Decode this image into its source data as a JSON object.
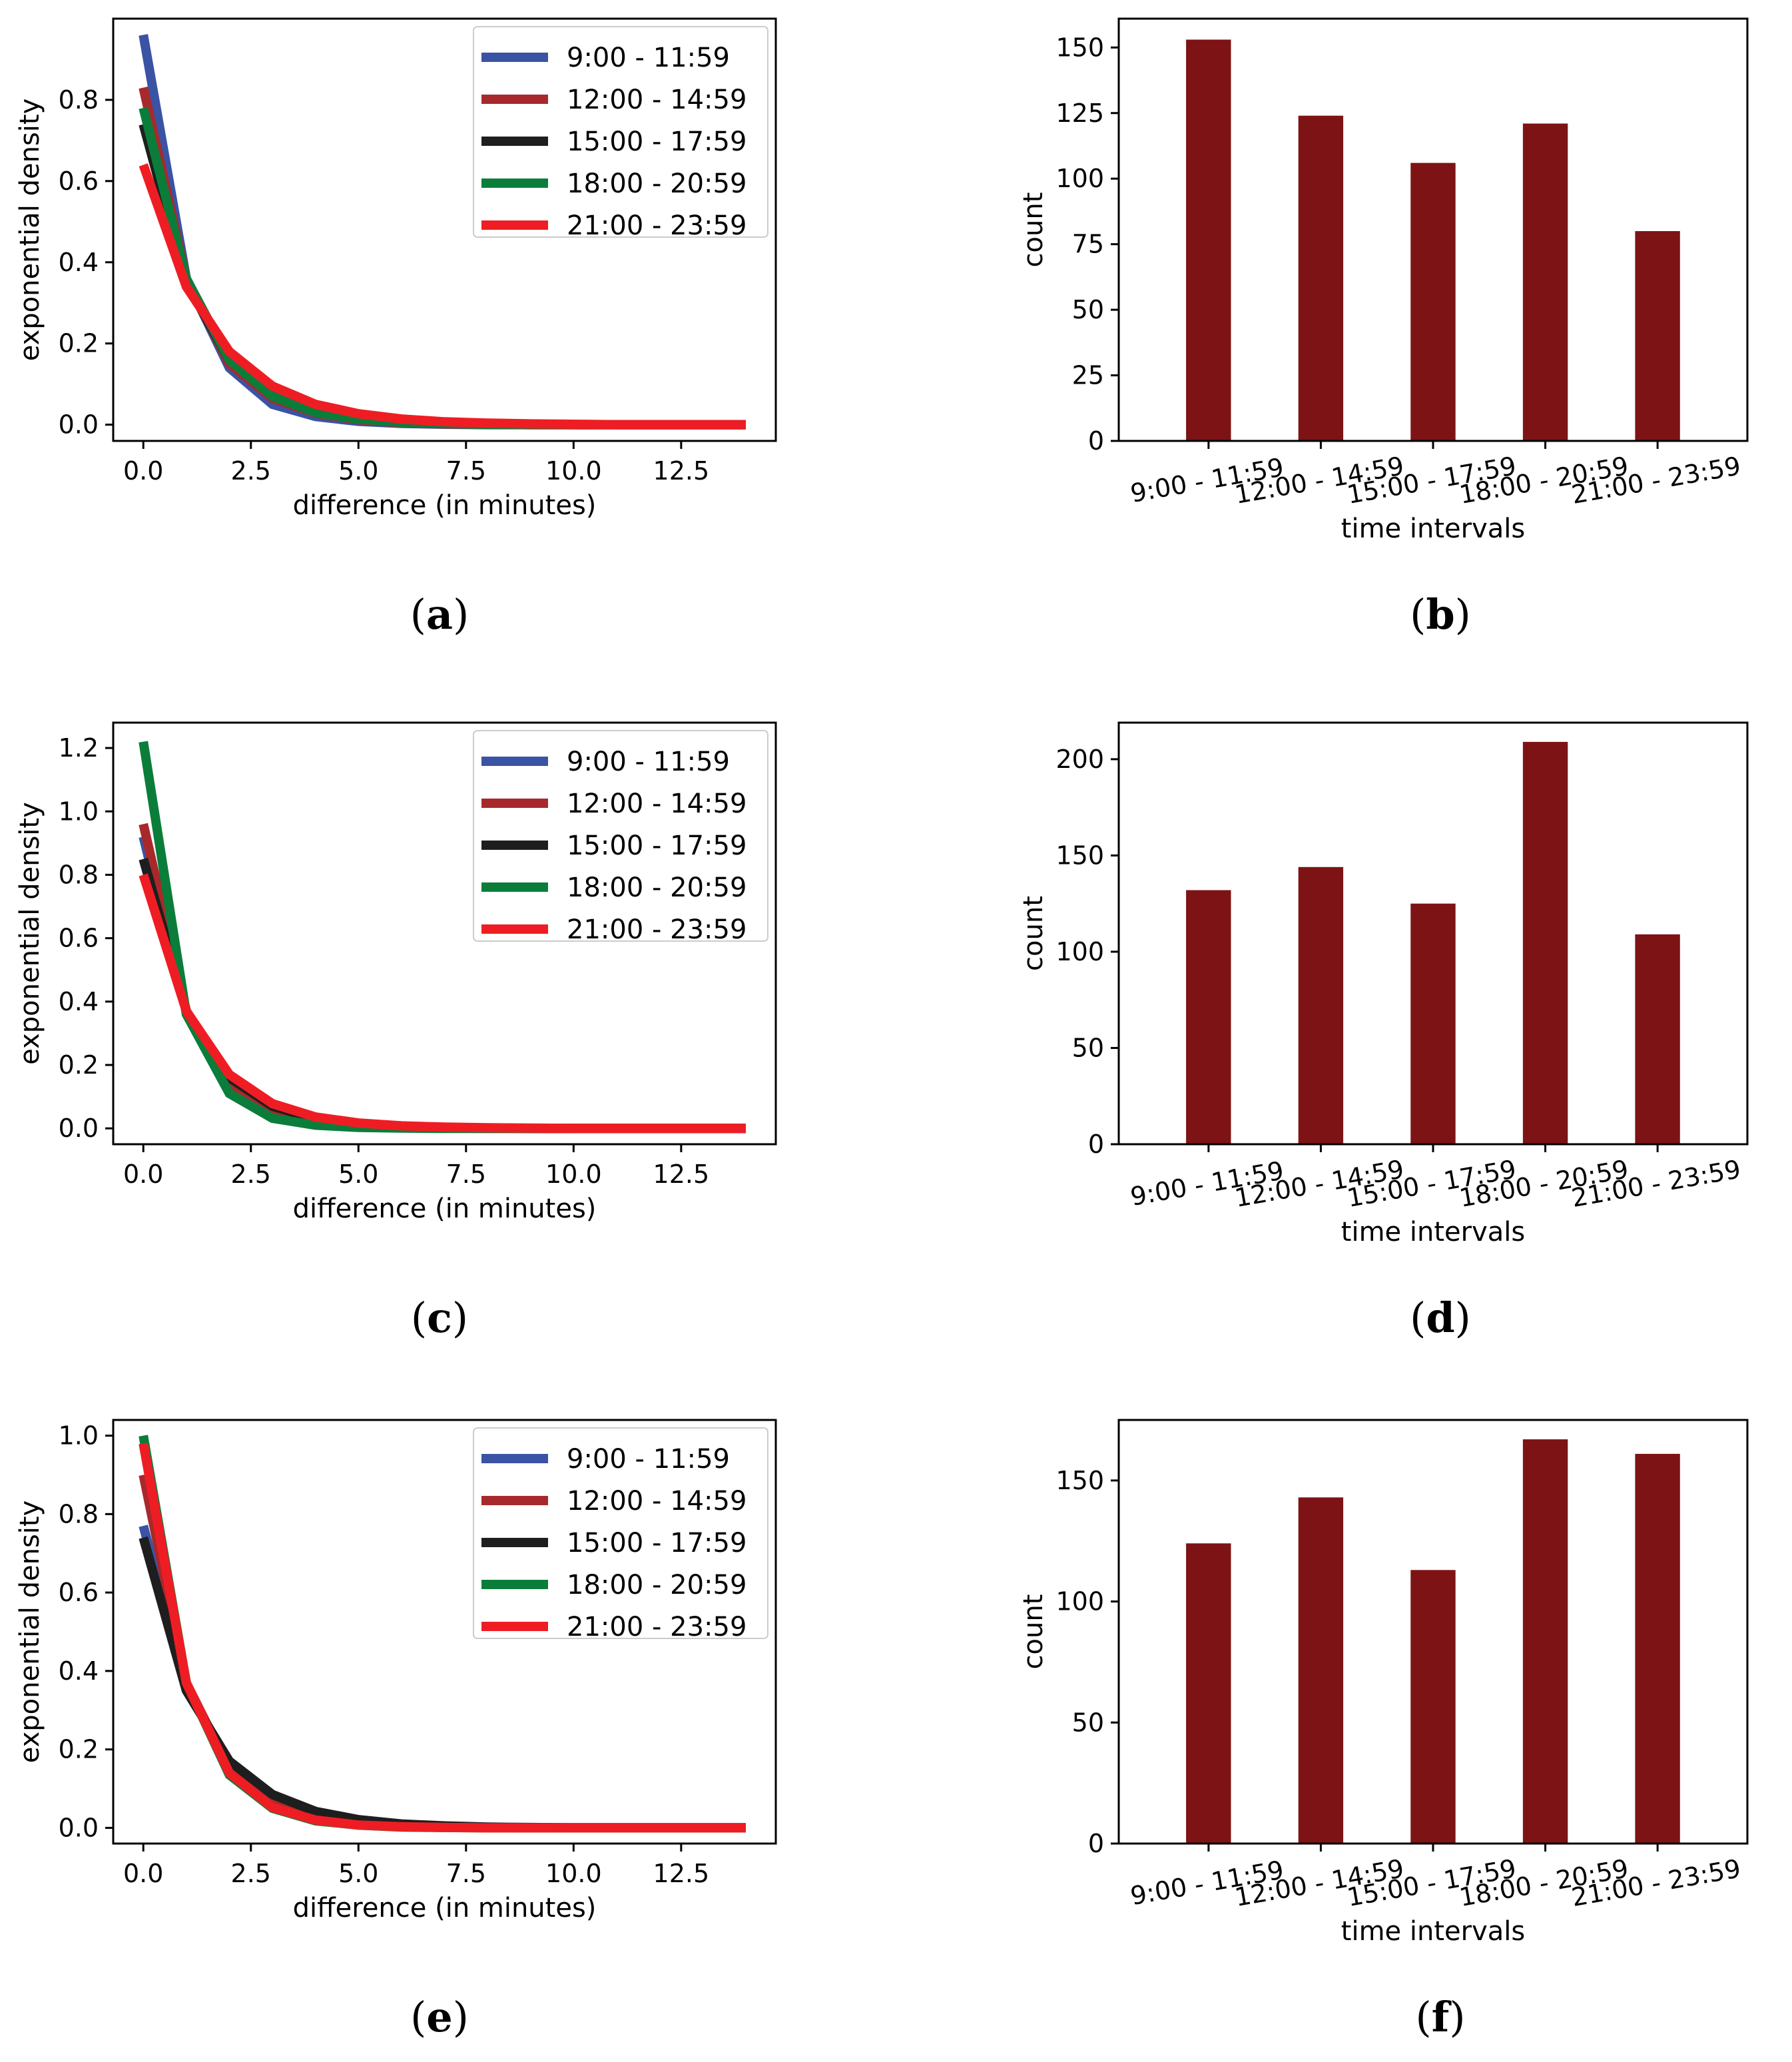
{
  "colors": {
    "series": [
      "#3a53a4",
      "#a8292b",
      "#1e1e1e",
      "#0b7d3a",
      "#ee1d24"
    ],
    "bar": "#7d1315",
    "axis": "#000000"
  },
  "chart_data": [
    {
      "id": "a",
      "type": "line",
      "caption": "a",
      "xlabel": "difference (in minutes)",
      "ylabel": "exponential density",
      "xlim": [
        -0.7,
        14.7
      ],
      "ylim": [
        -0.04,
        1.0
      ],
      "xticks": [
        0.0,
        2.5,
        5.0,
        7.5,
        10.0,
        12.5
      ],
      "xtick_labels": [
        "0.0",
        "2.5",
        "5.0",
        "7.5",
        "10.0",
        "12.5"
      ],
      "yticks": [
        0.0,
        0.2,
        0.4,
        0.6,
        0.8
      ],
      "ytick_labels": [
        "0.0",
        "0.2",
        "0.4",
        "0.6",
        "0.8"
      ],
      "legend_position": "top-right",
      "x": [
        0,
        1,
        2,
        3,
        4,
        5,
        6,
        7,
        8,
        9,
        10,
        11,
        12,
        13,
        14
      ],
      "series": [
        {
          "name": "9:00 - 11:59",
          "values": [
            0.96,
            0.36,
            0.14,
            0.05,
            0.02,
            0.008,
            0.003,
            0.001,
            0.0,
            0.0,
            0.0,
            0.0,
            0.0,
            0.0,
            0.0
          ]
        },
        {
          "name": "12:00 - 14:59",
          "values": [
            0.83,
            0.36,
            0.15,
            0.065,
            0.028,
            0.012,
            0.005,
            0.002,
            0.001,
            0.0,
            0.0,
            0.0,
            0.0,
            0.0,
            0.0
          ]
        },
        {
          "name": "15:00 - 17:59",
          "values": [
            0.74,
            0.35,
            0.16,
            0.075,
            0.035,
            0.016,
            0.008,
            0.004,
            0.002,
            0.001,
            0.0,
            0.0,
            0.0,
            0.0,
            0.0
          ]
        },
        {
          "name": "18:00 - 20:59",
          "values": [
            0.78,
            0.36,
            0.16,
            0.07,
            0.03,
            0.014,
            0.006,
            0.003,
            0.001,
            0.0,
            0.0,
            0.0,
            0.0,
            0.0,
            0.0
          ]
        },
        {
          "name": "21:00 - 23:59",
          "values": [
            0.64,
            0.34,
            0.18,
            0.095,
            0.05,
            0.027,
            0.014,
            0.007,
            0.004,
            0.002,
            0.001,
            0.0,
            0.0,
            0.0,
            0.0
          ]
        }
      ]
    },
    {
      "id": "b",
      "type": "bar",
      "caption": "b",
      "xlabel": "time intervals",
      "ylabel": "count",
      "categories": [
        "9:00 - 11:59",
        "12:00 - 14:59",
        "15:00 - 17:59",
        "18:00 - 20:59",
        "21:00 - 23:59"
      ],
      "values": [
        153,
        124,
        106,
        121,
        80
      ],
      "ylim": [
        0,
        161
      ],
      "yticks": [
        0,
        25,
        50,
        75,
        100,
        125,
        150
      ],
      "ytick_labels": [
        "0",
        "25",
        "50",
        "75",
        "100",
        "125",
        "150"
      ]
    },
    {
      "id": "c",
      "type": "line",
      "caption": "c",
      "xlabel": "difference (in minutes)",
      "ylabel": "exponential density",
      "xlim": [
        -0.7,
        14.7
      ],
      "ylim": [
        -0.05,
        1.28
      ],
      "xticks": [
        0.0,
        2.5,
        5.0,
        7.5,
        10.0,
        12.5
      ],
      "xtick_labels": [
        "0.0",
        "2.5",
        "5.0",
        "7.5",
        "10.0",
        "12.5"
      ],
      "yticks": [
        0.0,
        0.2,
        0.4,
        0.6,
        0.8,
        1.0,
        1.2
      ],
      "ytick_labels": [
        "0.0",
        "0.2",
        "0.4",
        "0.6",
        "0.8",
        "1.0",
        "1.2"
      ],
      "legend_position": "top-right",
      "x": [
        0,
        1,
        2,
        3,
        4,
        5,
        6,
        7,
        8,
        9,
        10,
        11,
        12,
        13,
        14
      ],
      "series": [
        {
          "name": "9:00 - 11:59",
          "values": [
            0.92,
            0.37,
            0.15,
            0.06,
            0.024,
            0.01,
            0.004,
            0.002,
            0.001,
            0.0,
            0.0,
            0.0,
            0.0,
            0.0,
            0.0
          ]
        },
        {
          "name": "12:00 - 14:59",
          "values": [
            0.96,
            0.37,
            0.14,
            0.055,
            0.021,
            0.008,
            0.003,
            0.001,
            0.0,
            0.0,
            0.0,
            0.0,
            0.0,
            0.0,
            0.0
          ]
        },
        {
          "name": "15:00 - 17:59",
          "values": [
            0.85,
            0.37,
            0.16,
            0.07,
            0.03,
            0.013,
            0.006,
            0.003,
            0.001,
            0.0,
            0.0,
            0.0,
            0.0,
            0.0,
            0.0
          ]
        },
        {
          "name": "18:00 - 20:59",
          "values": [
            1.22,
            0.36,
            0.11,
            0.032,
            0.01,
            0.003,
            0.001,
            0.0,
            0.0,
            0.0,
            0.0,
            0.0,
            0.0,
            0.0,
            0.0
          ]
        },
        {
          "name": "21:00 - 23:59",
          "values": [
            0.8,
            0.37,
            0.17,
            0.078,
            0.036,
            0.017,
            0.008,
            0.004,
            0.002,
            0.001,
            0.0,
            0.0,
            0.0,
            0.0,
            0.0
          ]
        }
      ]
    },
    {
      "id": "d",
      "type": "bar",
      "caption": "d",
      "xlabel": "time intervals",
      "ylabel": "count",
      "categories": [
        "9:00 - 11:59",
        "12:00 - 14:59",
        "15:00 - 17:59",
        "18:00 - 20:59",
        "21:00 - 23:59"
      ],
      "values": [
        132,
        144,
        125,
        209,
        109
      ],
      "ylim": [
        0,
        219
      ],
      "yticks": [
        0,
        50,
        100,
        150,
        200
      ],
      "ytick_labels": [
        "0",
        "50",
        "100",
        "150",
        "200"
      ]
    },
    {
      "id": "e",
      "type": "line",
      "caption": "e",
      "xlabel": "difference (in minutes)",
      "ylabel": "exponential density",
      "xlim": [
        -0.7,
        14.7
      ],
      "ylim": [
        -0.04,
        1.04
      ],
      "xticks": [
        0.0,
        2.5,
        5.0,
        7.5,
        10.0,
        12.5
      ],
      "xtick_labels": [
        "0.0",
        "2.5",
        "5.0",
        "7.5",
        "10.0",
        "12.5"
      ],
      "yticks": [
        0.0,
        0.2,
        0.4,
        0.6,
        0.8,
        1.0
      ],
      "ytick_labels": [
        "0.0",
        "0.2",
        "0.4",
        "0.6",
        "0.8",
        "1.0"
      ],
      "legend_position": "top-right",
      "x": [
        0,
        1,
        2,
        3,
        4,
        5,
        6,
        7,
        8,
        9,
        10,
        11,
        12,
        13,
        14
      ],
      "series": [
        {
          "name": "9:00 - 11:59",
          "values": [
            0.77,
            0.36,
            0.16,
            0.075,
            0.034,
            0.015,
            0.007,
            0.003,
            0.001,
            0.0,
            0.0,
            0.0,
            0.0,
            0.0,
            0.0
          ]
        },
        {
          "name": "12:00 - 14:59",
          "values": [
            0.9,
            0.37,
            0.15,
            0.06,
            0.025,
            0.01,
            0.004,
            0.002,
            0.001,
            0.0,
            0.0,
            0.0,
            0.0,
            0.0,
            0.0
          ]
        },
        {
          "name": "15:00 - 17:59",
          "values": [
            0.74,
            0.35,
            0.17,
            0.085,
            0.042,
            0.021,
            0.01,
            0.005,
            0.002,
            0.001,
            0.0,
            0.0,
            0.0,
            0.0,
            0.0
          ]
        },
        {
          "name": "18:00 - 20:59",
          "values": [
            1.0,
            0.37,
            0.135,
            0.05,
            0.018,
            0.007,
            0.002,
            0.001,
            0.0,
            0.0,
            0.0,
            0.0,
            0.0,
            0.0,
            0.0
          ]
        },
        {
          "name": "21:00 - 23:59",
          "values": [
            0.98,
            0.37,
            0.14,
            0.052,
            0.02,
            0.007,
            0.003,
            0.001,
            0.0,
            0.0,
            0.0,
            0.0,
            0.0,
            0.0,
            0.0
          ]
        }
      ]
    },
    {
      "id": "f",
      "type": "bar",
      "caption": "f",
      "xlabel": "time intervals",
      "ylabel": "count",
      "categories": [
        "9:00 - 11:59",
        "12:00 - 14:59",
        "15:00 - 17:59",
        "18:00 - 20:59",
        "21:00 - 23:59"
      ],
      "values": [
        124,
        143,
        113,
        167,
        161
      ],
      "ylim": [
        0,
        175
      ],
      "yticks": [
        0,
        50,
        100,
        150
      ],
      "ytick_labels": [
        "0",
        "50",
        "100",
        "150"
      ]
    }
  ]
}
